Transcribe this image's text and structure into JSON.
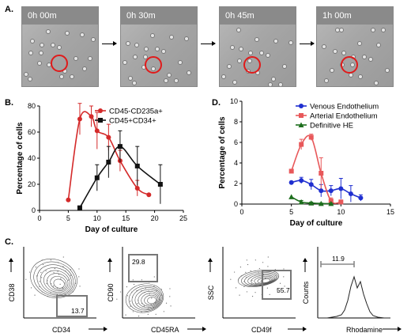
{
  "panels": {
    "a": "A.",
    "b": "B.",
    "c": "C.",
    "d": "D."
  },
  "timelapse": {
    "frames": [
      "0h 00m",
      "0h 30m",
      "0h 45m",
      "1h 00m"
    ],
    "highlight_color": "#e01b1b"
  },
  "chart_data": [
    {
      "type": "line",
      "panel": "B",
      "xlabel": "Day of culture",
      "ylabel": "Percentage of cells",
      "xlim": [
        0,
        25
      ],
      "ylim": [
        0,
        80
      ],
      "xticks": [
        0,
        5,
        10,
        15,
        20,
        25
      ],
      "yticks": [
        0,
        20,
        40,
        60,
        80
      ],
      "grid": false,
      "legend_position": "top-right",
      "series": [
        {
          "name": "CD45-CD235a+",
          "color": "#d42a2a",
          "marker": "circle",
          "x": [
            5,
            7,
            9,
            10,
            12,
            14,
            17,
            19
          ],
          "y": [
            8,
            70,
            72,
            61,
            56,
            38,
            17,
            12
          ],
          "err": [
            0,
            12,
            8,
            14,
            10,
            8,
            6,
            0
          ]
        },
        {
          "name": "CD45+CD34+",
          "color": "#111111",
          "marker": "square",
          "x": [
            7,
            10,
            12,
            14,
            17,
            21
          ],
          "y": [
            2,
            25,
            37,
            49,
            34,
            20
          ],
          "err": [
            0,
            10,
            12,
            12,
            15,
            15
          ]
        }
      ]
    },
    {
      "type": "line",
      "panel": "D",
      "xlabel": "Day of culture",
      "ylabel": "Percentage of cells",
      "xlim": [
        0,
        15
      ],
      "ylim": [
        0,
        10
      ],
      "xticks": [
        0,
        5,
        10,
        15
      ],
      "yticks": [
        0,
        2,
        4,
        6,
        8,
        10
      ],
      "grid": false,
      "legend_position": "top-right",
      "series": [
        {
          "name": "Venous Endothelium",
          "color": "#1f2fd0",
          "marker": "circle",
          "x": [
            5,
            6,
            7,
            8,
            9,
            10,
            11,
            12
          ],
          "y": [
            2.1,
            2.3,
            1.9,
            1.3,
            1.3,
            1.5,
            1.0,
            0.6
          ],
          "err": [
            0,
            0.3,
            0.5,
            0.6,
            0.5,
            1.0,
            0.8,
            0.3
          ]
        },
        {
          "name": "Arterial Endothelium",
          "color": "#e8585a",
          "marker": "square",
          "x": [
            5,
            6,
            7,
            8,
            9,
            10
          ],
          "y": [
            3.2,
            5.8,
            6.5,
            3.0,
            0.3,
            0.2
          ],
          "err": [
            0,
            0.5,
            0.3,
            1.5,
            0.3,
            0.2
          ]
        },
        {
          "name": "Definitive HE",
          "color": "#1d6e1d",
          "marker": "triangle",
          "x": [
            5,
            6,
            7,
            8,
            9
          ],
          "y": [
            0.7,
            0.2,
            0.1,
            0.05,
            0.05
          ],
          "err": [
            0,
            0.15,
            0.1,
            0.05,
            0.05
          ]
        }
      ]
    }
  ],
  "facs": [
    {
      "x_label": "CD34",
      "y_label": "CD38",
      "gate_value": "13.7"
    },
    {
      "x_label": "CD45RA",
      "y_label": "CD90",
      "gate_value": "29.8"
    },
    {
      "x_label": "CD49f",
      "y_label": "SSC",
      "gate_value": "55.7"
    },
    {
      "x_label": "Rhodamine",
      "y_label": "Counts",
      "gate_value": "11.9"
    }
  ]
}
